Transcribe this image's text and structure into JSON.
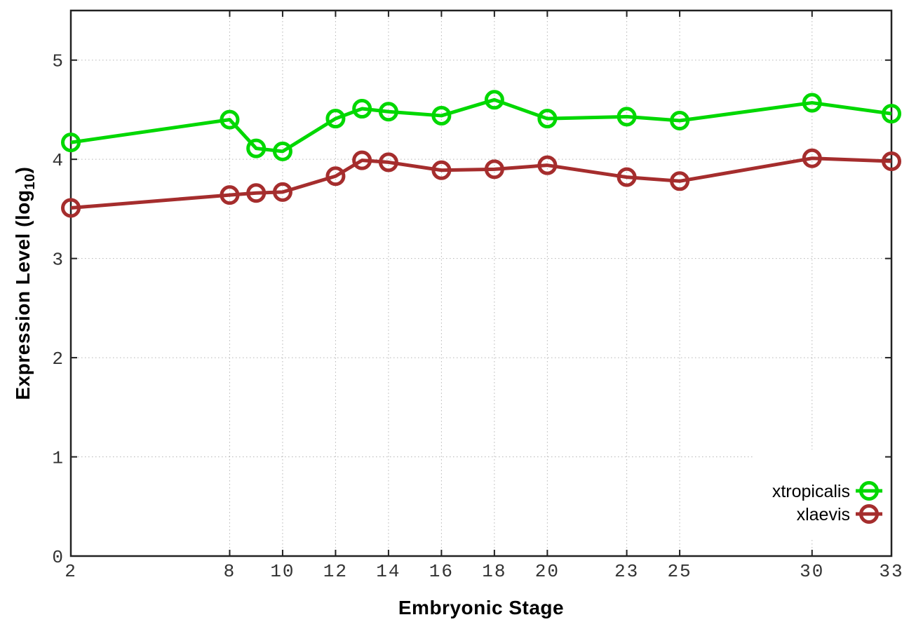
{
  "chart_data": {
    "type": "line",
    "x": [
      2,
      8,
      9,
      10,
      12,
      13,
      14,
      16,
      18,
      20,
      23,
      25,
      30,
      33
    ],
    "series": [
      {
        "name": "xtropicalis",
        "color": "#00d800",
        "marker": "open-circle",
        "values": [
          4.17,
          4.4,
          4.11,
          4.08,
          4.41,
          4.51,
          4.48,
          4.44,
          4.6,
          4.41,
          4.43,
          4.39,
          4.57,
          4.46
        ]
      },
      {
        "name": "xlaevis",
        "color": "#a52d2d",
        "marker": "open-circle",
        "values": [
          3.51,
          3.64,
          3.66,
          3.67,
          3.83,
          3.99,
          3.97,
          3.89,
          3.9,
          3.94,
          3.82,
          3.78,
          4.01,
          3.98
        ]
      }
    ],
    "title": "",
    "xlabel": "Embryonic Stage",
    "ylabel": "Expression Level (log10)",
    "ylabel_parts": {
      "pre": "Expression Level (log",
      "sub": "10",
      "post": ")"
    },
    "xlim": [
      2,
      33
    ],
    "ylim": [
      0,
      5.5
    ],
    "xticks": [
      2,
      8,
      10,
      12,
      14,
      16,
      18,
      20,
      23,
      25,
      30,
      33
    ],
    "yticks": [
      0,
      1,
      2,
      3,
      4,
      5
    ],
    "grid": "dotted",
    "legend_position": "bottom-right",
    "legend_entries": [
      "xtropicalis",
      "xlaevis"
    ]
  },
  "colors": {
    "background": "#ffffff",
    "border": "#222222",
    "grid": "#b5b5b5",
    "tick_label": "#333333",
    "axis_title": "#000000",
    "legend_text": "#000000",
    "legend_box": "#ffffff",
    "series_green": "#00d800",
    "series_red": "#a52d2d"
  }
}
